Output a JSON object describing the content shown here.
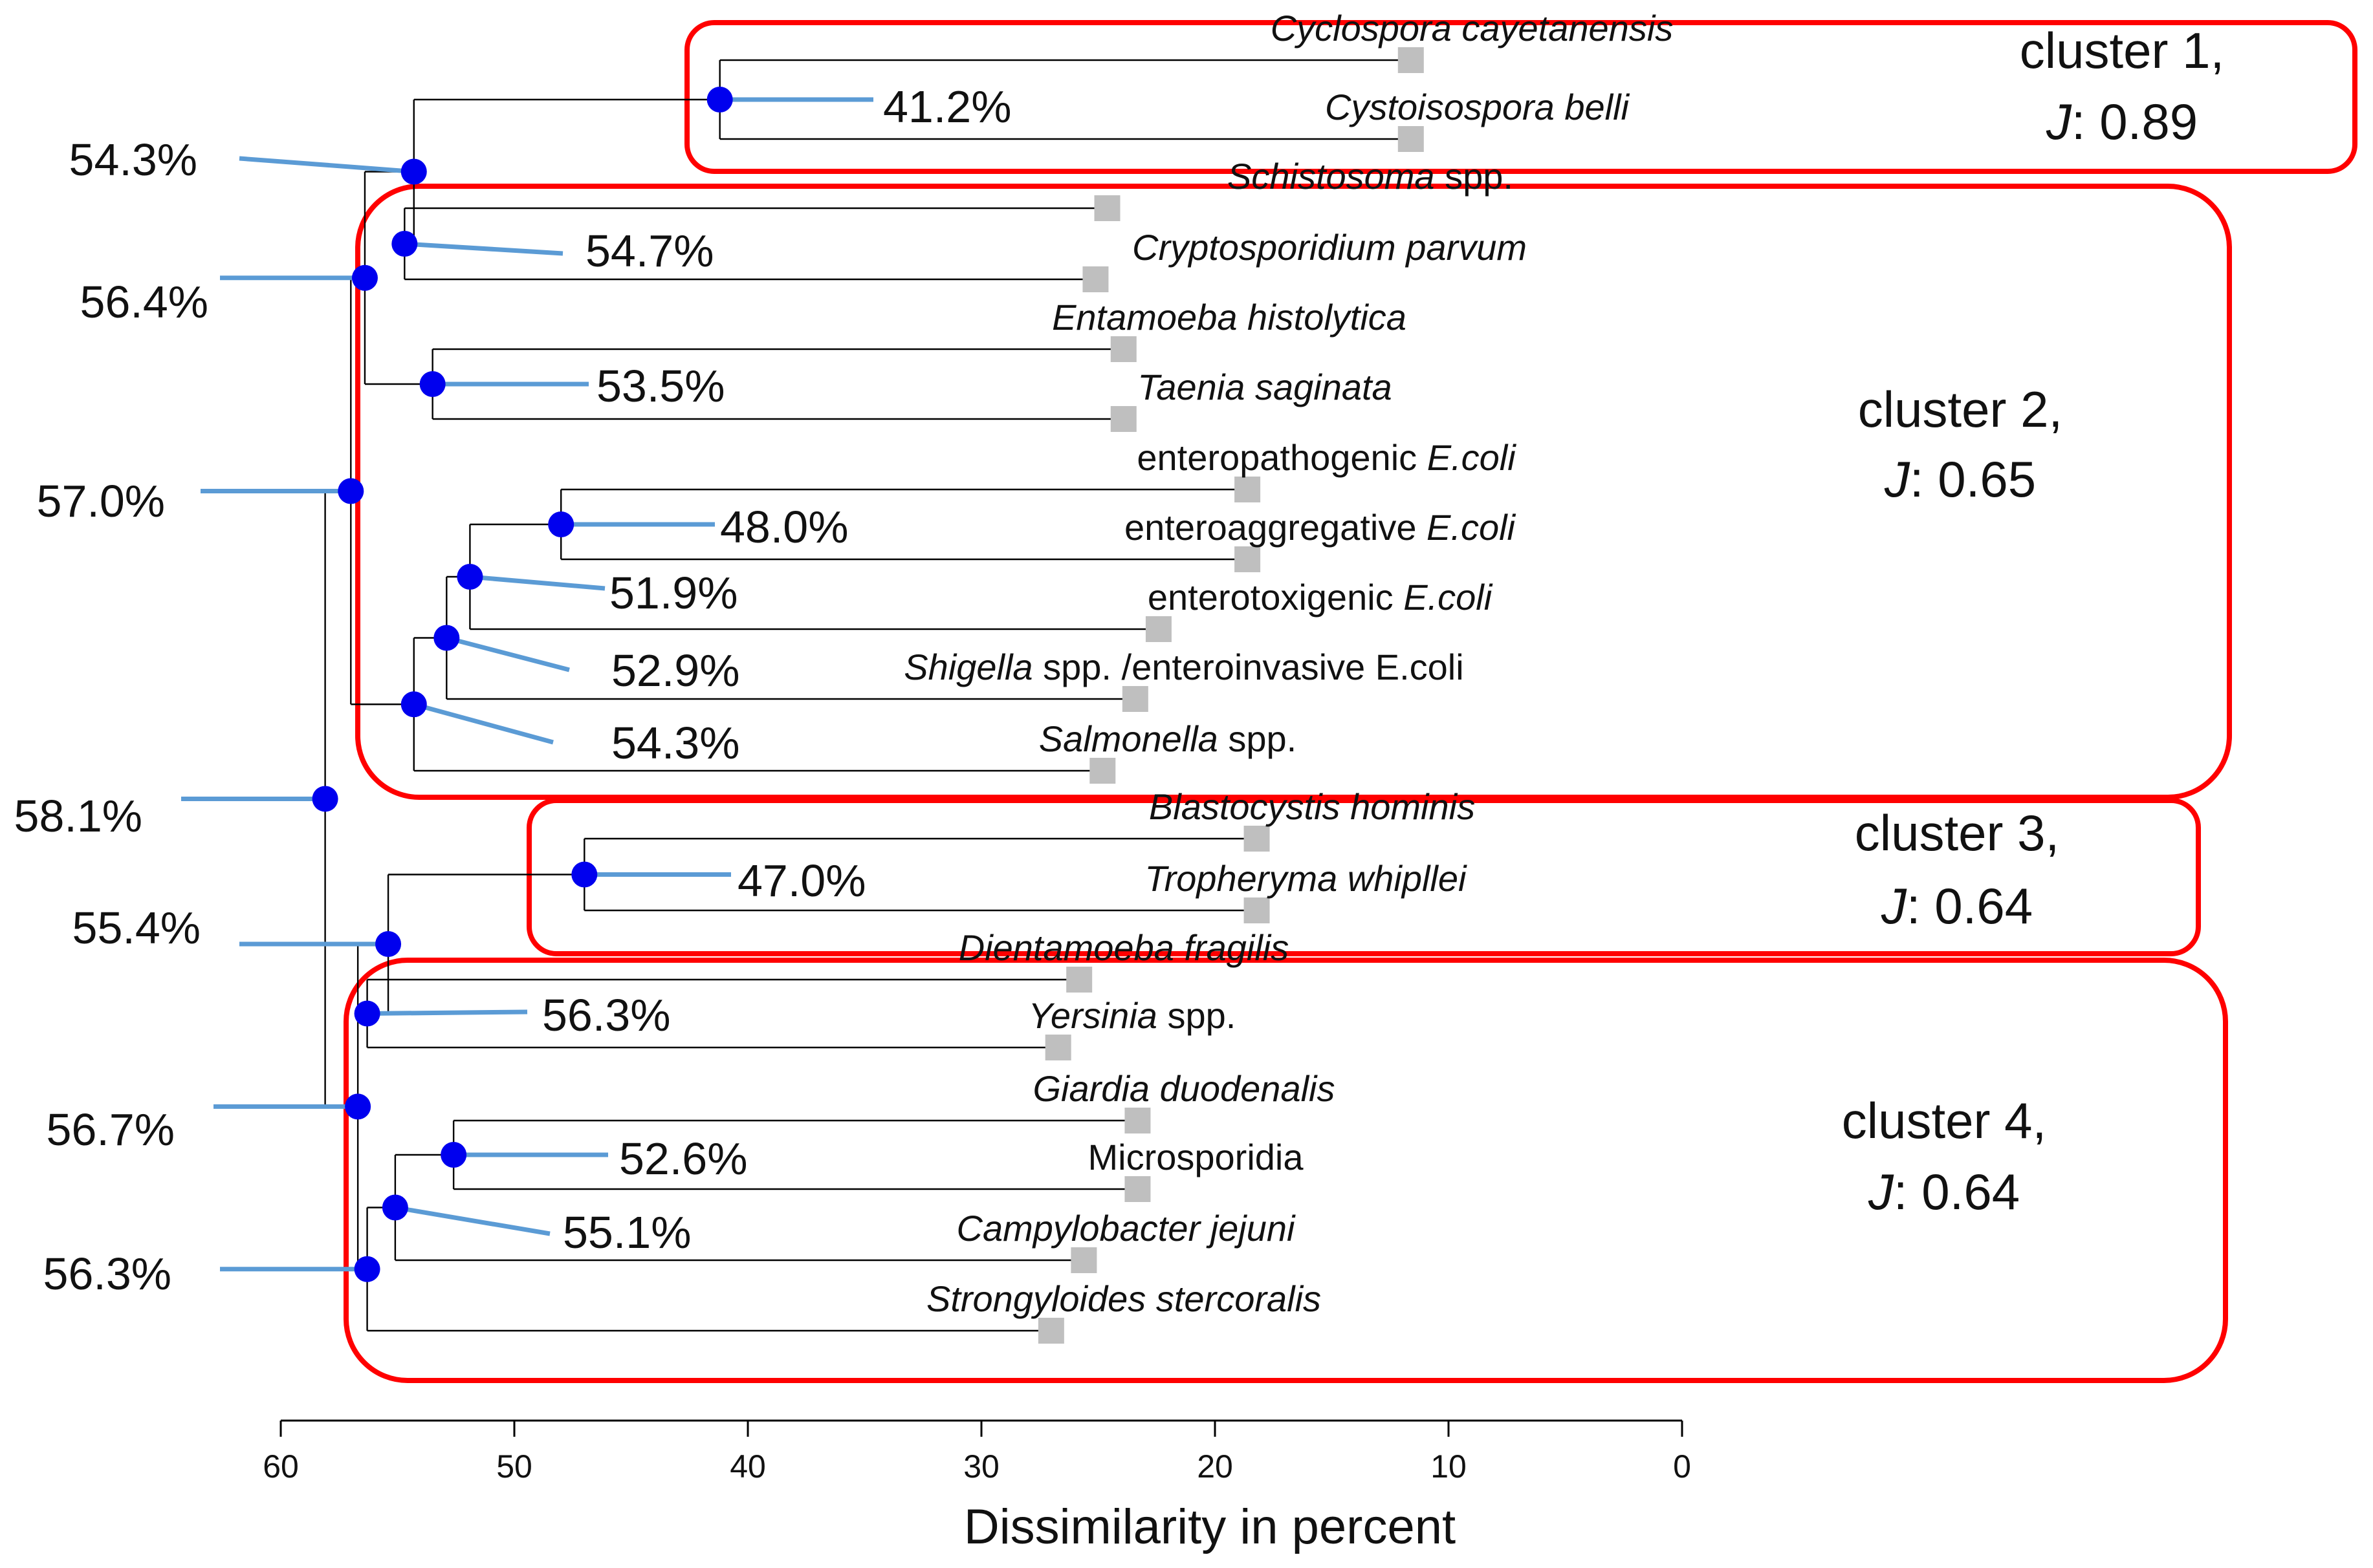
{
  "chart_data": {
    "type": "dendrogram",
    "xlabel": "Dissimilarity in percent",
    "xlim": [
      60,
      0
    ],
    "xticks": [
      60,
      50,
      40,
      30,
      20,
      10,
      0
    ],
    "colors": {
      "branch": "#000000",
      "node": "#0000ee",
      "pointer": "#5b9bd5",
      "leaf": "#bfbfbf",
      "cluster_box": "#ff0000"
    },
    "leaves": [
      {
        "id": "L1",
        "parts": [
          {
            "t": "Cyclospora cayetanensis",
            "i": true
          }
        ],
        "height": 12
      },
      {
        "id": "L2",
        "parts": [
          {
            "t": "Cystoisospora belli",
            "i": true
          }
        ],
        "height": 12
      },
      {
        "id": "L3",
        "parts": [
          {
            "t": "Schistosoma",
            "i": true
          },
          {
            "t": " spp.",
            "i": false
          }
        ],
        "height": 25
      },
      {
        "id": "L4",
        "parts": [
          {
            "t": "Cryptosporidium parvum",
            "i": true
          }
        ],
        "height": 25.5
      },
      {
        "id": "L5",
        "parts": [
          {
            "t": "Entamoeba histolytica",
            "i": true
          }
        ],
        "height": 24.3
      },
      {
        "id": "L6",
        "parts": [
          {
            "t": "Taenia saginata",
            "i": true
          }
        ],
        "height": 24.3
      },
      {
        "id": "L7",
        "parts": [
          {
            "t": "enteropathogenic ",
            "i": false
          },
          {
            "t": "E.coli",
            "i": true
          }
        ],
        "height": 19
      },
      {
        "id": "L8",
        "parts": [
          {
            "t": "enteroaggregative  ",
            "i": false
          },
          {
            "t": "E.coli",
            "i": true
          }
        ],
        "height": 19
      },
      {
        "id": "L9",
        "parts": [
          {
            "t": "enterotoxigenic  ",
            "i": false
          },
          {
            "t": "E.coli",
            "i": true
          }
        ],
        "height": 22.8
      },
      {
        "id": "L10",
        "parts": [
          {
            "t": "Shigella",
            "i": true
          },
          {
            "t": " spp. /enteroinvasive E.coli",
            "i": false
          }
        ],
        "height": 23.8
      },
      {
        "id": "L11",
        "parts": [
          {
            "t": "Salmonella",
            "i": true
          },
          {
            "t": " spp.",
            "i": false
          }
        ],
        "height": 25.2
      },
      {
        "id": "L12",
        "parts": [
          {
            "t": "Blastocystis hominis",
            "i": true
          }
        ],
        "height": 18.6
      },
      {
        "id": "L13",
        "parts": [
          {
            "t": "Tropheryma whipllei",
            "i": true
          }
        ],
        "height": 18.6
      },
      {
        "id": "L14",
        "parts": [
          {
            "t": "Dientamoeba fragilis",
            "i": true
          }
        ],
        "height": 26.2
      },
      {
        "id": "L15",
        "parts": [
          {
            "t": "Yersinia",
            "i": true
          },
          {
            "t": " spp.",
            "i": false
          }
        ],
        "height": 27.1
      },
      {
        "id": "L16",
        "parts": [
          {
            "t": "Giardia duodenalis",
            "i": true
          }
        ],
        "height": 23.7
      },
      {
        "id": "L17",
        "parts": [
          {
            "t": "Microsporidia",
            "i": false
          }
        ],
        "height": 23.7
      },
      {
        "id": "L18",
        "parts": [
          {
            "t": "Campylobacter jejuni",
            "i": true
          }
        ],
        "height": 26
      },
      {
        "id": "L19",
        "parts": [
          {
            "t": "Strongyloides stercoralis",
            "i": true
          }
        ],
        "height": 27.4
      }
    ],
    "nodes": [
      {
        "id": "N1",
        "children": [
          "L1",
          "L2"
        ],
        "height": 41.2,
        "label": "41.2%"
      },
      {
        "id": "N2",
        "children": [
          "L3",
          "L4"
        ],
        "height": 54.7,
        "label": "54.7%"
      },
      {
        "id": "N3",
        "children": [
          "L5",
          "L6"
        ],
        "height": 53.5,
        "label": "53.5%"
      },
      {
        "id": "N4",
        "children": [
          "N1",
          "N2"
        ],
        "height": 54.3,
        "label": "54.3%"
      },
      {
        "id": "N5",
        "children": [
          "L7",
          "L8"
        ],
        "height": 48.0,
        "label": "48.0%"
      },
      {
        "id": "N6",
        "children": [
          "N5",
          "L9"
        ],
        "height": 51.9,
        "label": "51.9%"
      },
      {
        "id": "N7",
        "children": [
          "N6",
          "L10"
        ],
        "height": 52.9,
        "label": "52.9%"
      },
      {
        "id": "N8",
        "children": [
          "N7",
          "L11"
        ],
        "height": 54.3,
        "label": "54.3%"
      },
      {
        "id": "N9",
        "children": [
          "N4",
          "N3"
        ],
        "height": 56.4,
        "label": "56.4%"
      },
      {
        "id": "N10",
        "children": [
          "N9",
          "N8"
        ],
        "height": 57.0,
        "label": "57.0%"
      },
      {
        "id": "N11",
        "children": [
          "L12",
          "L13"
        ],
        "height": 47.0,
        "label": "47.0%"
      },
      {
        "id": "N12",
        "children": [
          "L14",
          "L15"
        ],
        "height": 56.3,
        "label": "56.3%"
      },
      {
        "id": "N13",
        "children": [
          "N11",
          "N12"
        ],
        "height": 55.4,
        "label": "55.4%"
      },
      {
        "id": "N14",
        "children": [
          "L16",
          "L17"
        ],
        "height": 52.6,
        "label": "52.6%"
      },
      {
        "id": "N15",
        "children": [
          "N14",
          "L18"
        ],
        "height": 55.1,
        "label": "55.1%"
      },
      {
        "id": "N16",
        "children": [
          "N15",
          "L19"
        ],
        "height": 56.3,
        "label": "56.3%"
      },
      {
        "id": "N17",
        "children": [
          "N13",
          "N16"
        ],
        "height": 56.7,
        "label": "56.7%"
      },
      {
        "id": "N18",
        "children": [
          "N10",
          "N17"
        ],
        "height": 58.1,
        "label": "58.1%"
      }
    ],
    "clusters": [
      {
        "name": "cluster 1,",
        "jaccard_prefix": "J",
        "jaccard_value": ": 0.89"
      },
      {
        "name": "cluster 2,",
        "jaccard_prefix": "J",
        "jaccard_value": ": 0.65"
      },
      {
        "name": "cluster 3,",
        "jaccard_prefix": "J",
        "jaccard_value": ": 0.64"
      },
      {
        "name": "cluster 4,",
        "jaccard_prefix": "J",
        "jaccard_value": ": 0.64"
      }
    ]
  }
}
